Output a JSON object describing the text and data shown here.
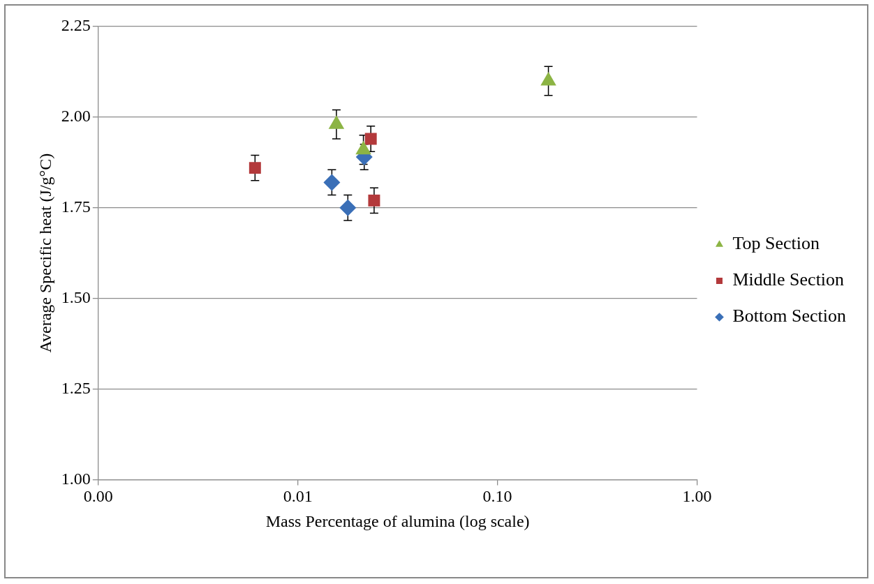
{
  "chart_data": {
    "type": "scatter",
    "xlabel": "Mass Percentage of alumina (log scale)",
    "ylabel": "Average Specific heat (J/g°C)",
    "log": "x",
    "grid": "y",
    "legend": "right",
    "xlim": [
      0.001,
      1
    ],
    "xticks": [
      {
        "value": 0.001,
        "label": "0.00"
      },
      {
        "value": 0.01,
        "label": "0.01"
      },
      {
        "value": 0.1,
        "label": "0.10"
      },
      {
        "value": 1,
        "label": "1.00"
      }
    ],
    "ylim": [
      1,
      2.25
    ],
    "yticks": [
      {
        "value": 1,
        "label": "1.00"
      },
      {
        "value": 1.25,
        "label": "1.25"
      },
      {
        "value": 1.5,
        "label": "1.50"
      },
      {
        "value": 1.75,
        "label": "1.75"
      },
      {
        "value": 2,
        "label": "2.00"
      },
      {
        "value": 2.25,
        "label": "2.25"
      }
    ],
    "series": [
      {
        "name": "Top Section",
        "color": "#8cb444",
        "marker": "triangle",
        "x": [
          0.0156,
          0.0213,
          0.18
        ],
        "values": [
          1.98,
          1.91,
          2.1
        ],
        "errors": [
          0.04,
          0.04,
          0.04
        ]
      },
      {
        "name": "Middle Section",
        "color": "#b3393b",
        "marker": "square",
        "x": [
          0.0061,
          0.0232,
          0.0241
        ],
        "values": [
          1.86,
          1.94,
          1.77
        ],
        "errors": [
          0.035,
          0.035,
          0.035
        ]
      },
      {
        "name": "Bottom Section",
        "color": "#3a6fb7",
        "marker": "diamond",
        "x": [
          0.0148,
          0.0178,
          0.0215
        ],
        "values": [
          1.82,
          1.75,
          1.89
        ],
        "errors": [
          0.035,
          0.035,
          0.035
        ]
      }
    ]
  }
}
